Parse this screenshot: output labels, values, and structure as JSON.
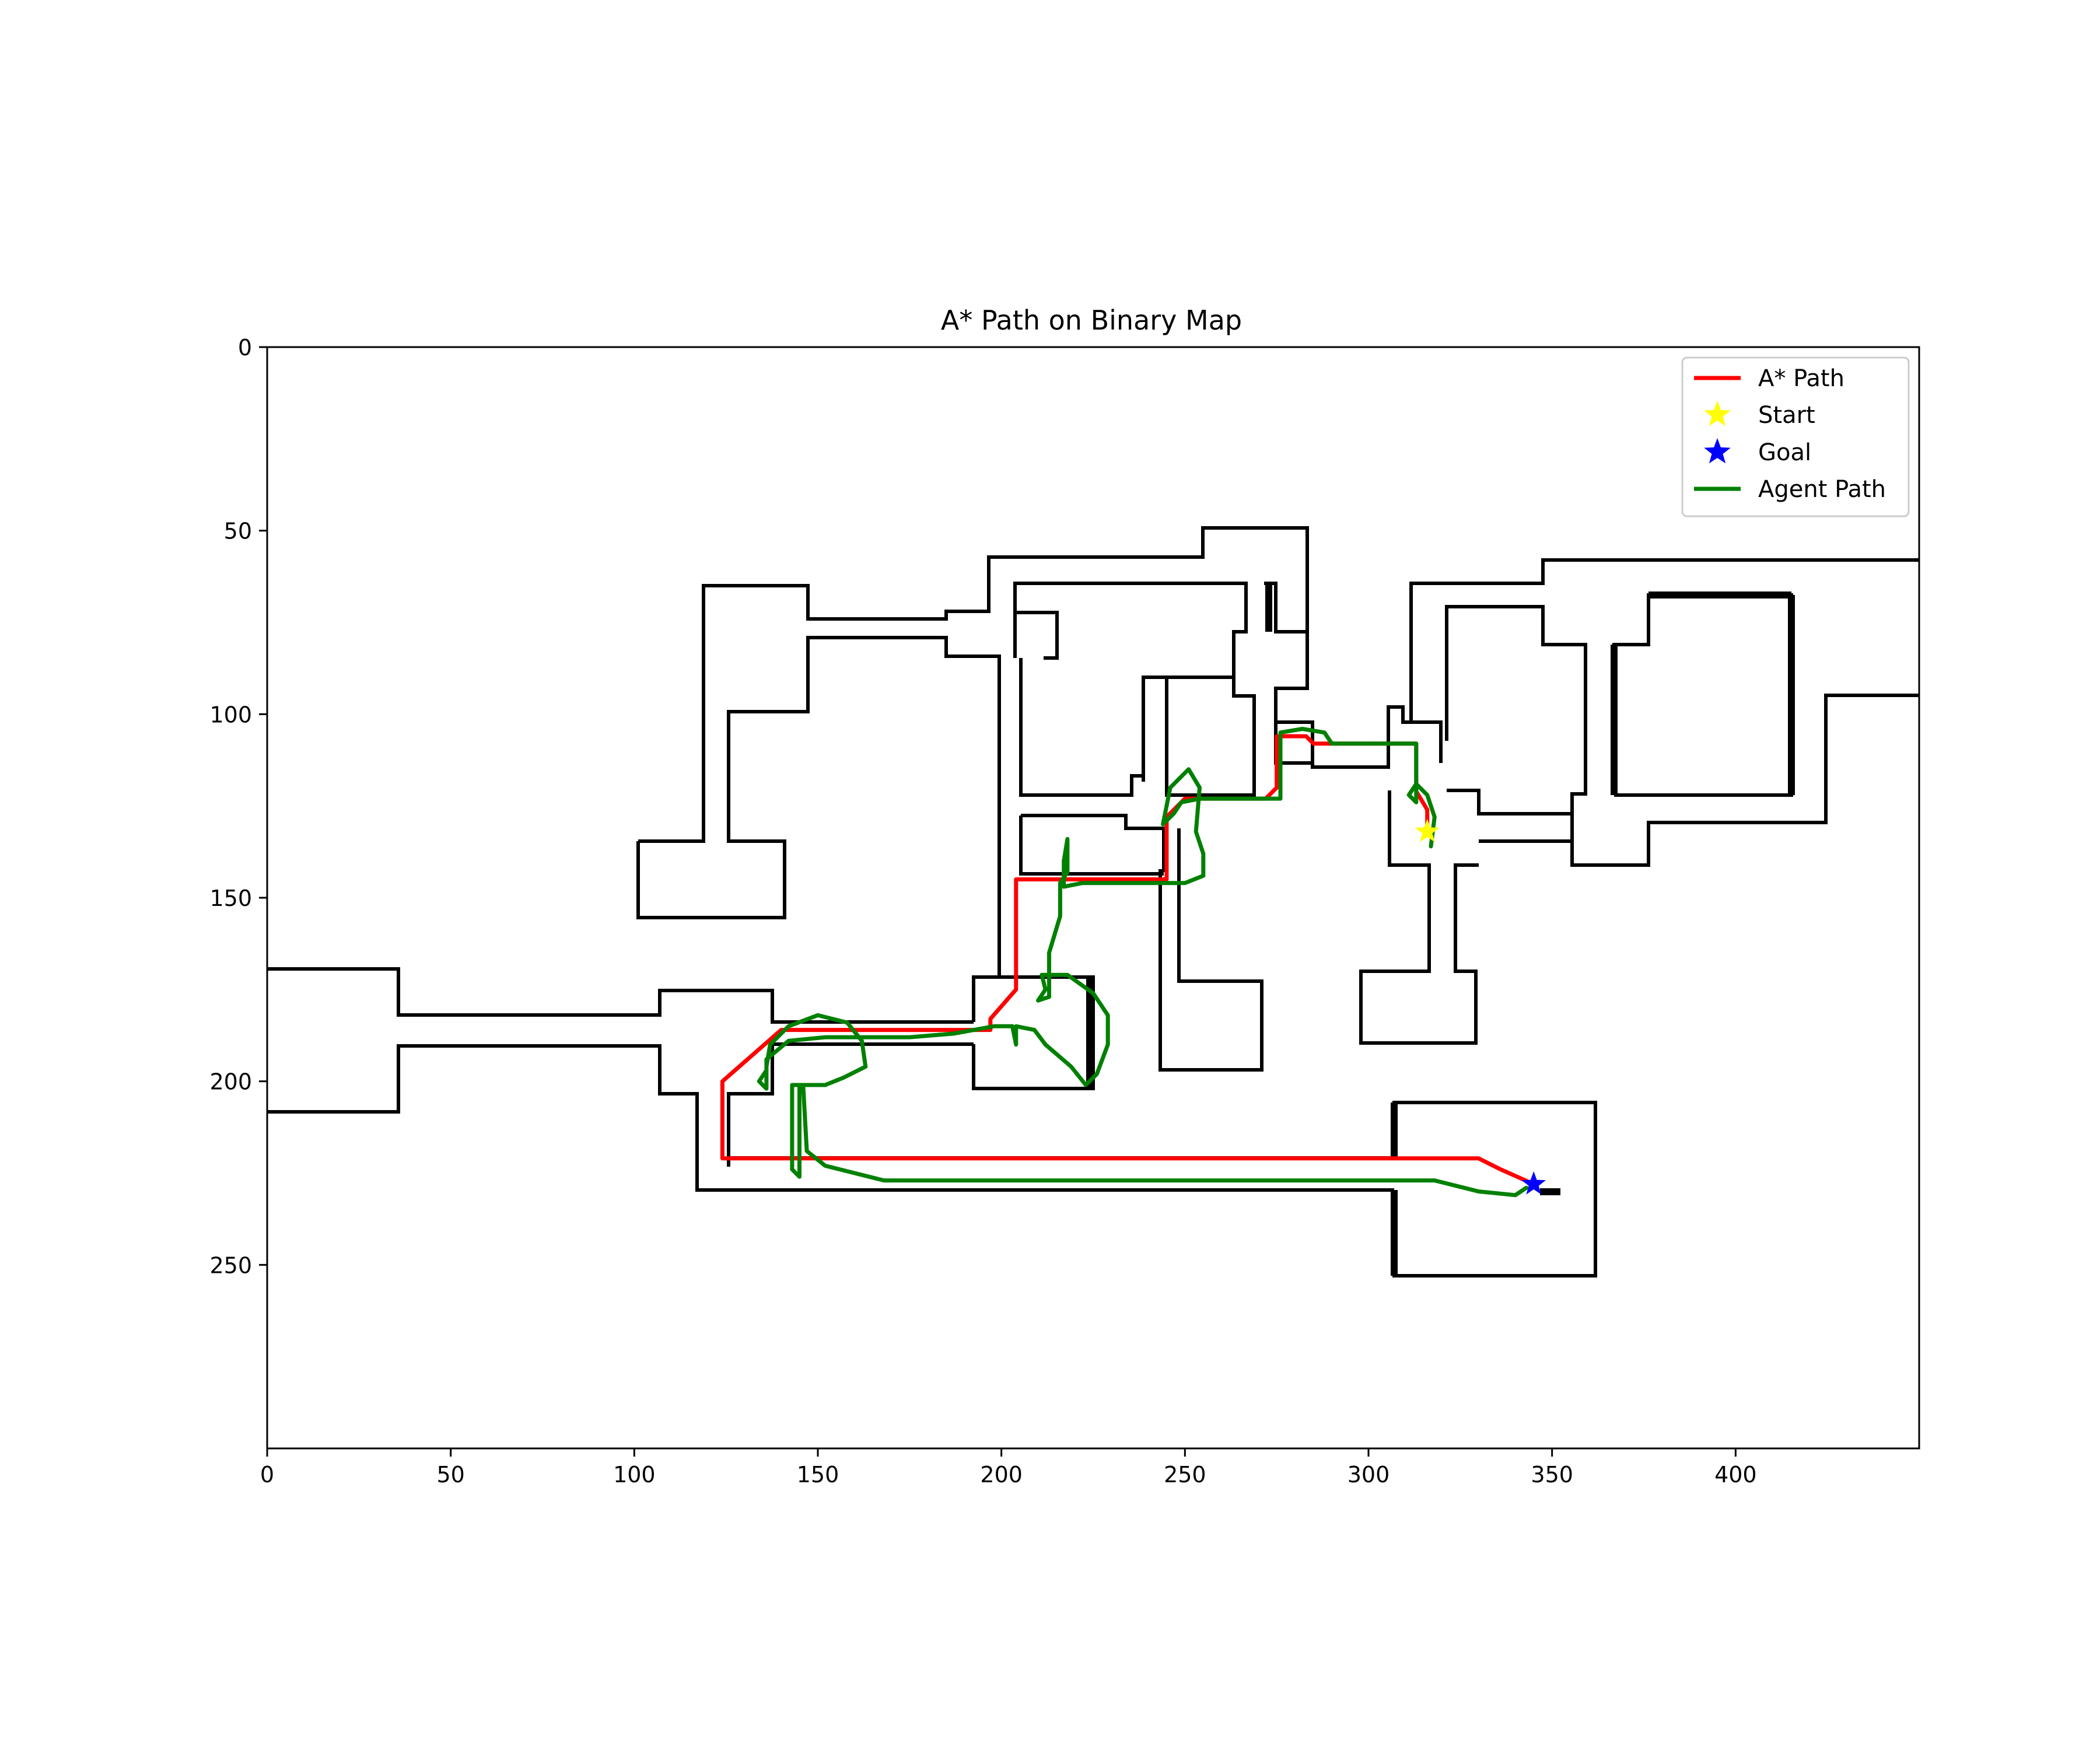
{
  "chart_data": {
    "type": "line",
    "title": "A* Path on Binary Map",
    "xlabel": "",
    "ylabel": "",
    "xlim": [
      0,
      450
    ],
    "ylim": [
      300,
      0
    ],
    "y_axis_inverted": true,
    "grid": false,
    "legend_position": "top-right",
    "x_ticks": [
      0,
      50,
      100,
      150,
      200,
      250,
      300,
      350,
      400
    ],
    "y_ticks": [
      0,
      50,
      100,
      150,
      200,
      250
    ],
    "colors": {
      "astar": "#ff0000",
      "agent": "#008000",
      "start": "#ffff00",
      "goal": "#0000ff",
      "walls": "#000000"
    },
    "legend": [
      {
        "label": "A* Path",
        "kind": "line",
        "color": "#ff0000"
      },
      {
        "label": "Start",
        "kind": "star",
        "color": "#ffff00"
      },
      {
        "label": "Goal",
        "kind": "star",
        "color": "#0000ff"
      },
      {
        "label": "Agent Path",
        "kind": "line",
        "color": "#008000"
      }
    ],
    "markers": {
      "start": {
        "x": 316,
        "y": 132
      },
      "goal": {
        "x": 345,
        "y": 228
      }
    },
    "astar_path": [
      [
        316,
        132
      ],
      [
        316,
        126
      ],
      [
        313,
        121
      ],
      [
        313,
        108
      ],
      [
        285,
        108
      ],
      [
        283,
        106
      ],
      [
        275,
        106
      ],
      [
        275,
        120
      ],
      [
        272,
        123
      ],
      [
        250,
        123
      ],
      [
        247,
        126
      ],
      [
        245,
        128
      ],
      [
        245,
        145
      ],
      [
        204,
        145
      ],
      [
        204,
        175
      ],
      [
        197,
        183
      ],
      [
        197,
        186
      ],
      [
        140,
        186
      ],
      [
        124,
        200
      ],
      [
        124,
        221
      ],
      [
        330,
        221
      ],
      [
        336,
        224
      ],
      [
        345,
        228
      ]
    ],
    "agent_path": [
      [
        317,
        136
      ],
      [
        318,
        128
      ],
      [
        316,
        122
      ],
      [
        313,
        119
      ],
      [
        311,
        122
      ],
      [
        313,
        124
      ],
      [
        313,
        108
      ],
      [
        290,
        108
      ],
      [
        288,
        105
      ],
      [
        282,
        104
      ],
      [
        276,
        105
      ],
      [
        276,
        123
      ],
      [
        254,
        123
      ],
      [
        249,
        124
      ],
      [
        247,
        127
      ],
      [
        244,
        130
      ],
      [
        246,
        120
      ],
      [
        251,
        115
      ],
      [
        254,
        120
      ],
      [
        253,
        132
      ],
      [
        255,
        138
      ],
      [
        255,
        144
      ],
      [
        250,
        146
      ],
      [
        222,
        146
      ],
      [
        217,
        147
      ],
      [
        217,
        140
      ],
      [
        218,
        134
      ],
      [
        218,
        143
      ],
      [
        216,
        146
      ],
      [
        216,
        155
      ],
      [
        213,
        165
      ],
      [
        213,
        177
      ],
      [
        210,
        178
      ],
      [
        212,
        175
      ],
      [
        211,
        171
      ],
      [
        218,
        171
      ],
      [
        225,
        176
      ],
      [
        229,
        182
      ],
      [
        229,
        190
      ],
      [
        226,
        198
      ],
      [
        223,
        201
      ],
      [
        219,
        196
      ],
      [
        212,
        190
      ],
      [
        209,
        186
      ],
      [
        204,
        185
      ],
      [
        204,
        190
      ],
      [
        203,
        185
      ],
      [
        198,
        185
      ],
      [
        187,
        187
      ],
      [
        175,
        188
      ],
      [
        152,
        188
      ],
      [
        142,
        189
      ],
      [
        136,
        194
      ],
      [
        136,
        197
      ],
      [
        134,
        200
      ],
      [
        136,
        202
      ],
      [
        136,
        196
      ],
      [
        137,
        190
      ],
      [
        142,
        185
      ],
      [
        150,
        182
      ],
      [
        158,
        184
      ],
      [
        162,
        189
      ],
      [
        163,
        196
      ],
      [
        157,
        199
      ],
      [
        152,
        201
      ],
      [
        145,
        201
      ],
      [
        145,
        226
      ],
      [
        143,
        224
      ],
      [
        143,
        201
      ],
      [
        146,
        201
      ],
      [
        147,
        219
      ],
      [
        152,
        223
      ],
      [
        168,
        227
      ],
      [
        310,
        227
      ],
      [
        318,
        227
      ],
      [
        330,
        230
      ],
      [
        340,
        231
      ],
      [
        343,
        229
      ]
    ]
  }
}
